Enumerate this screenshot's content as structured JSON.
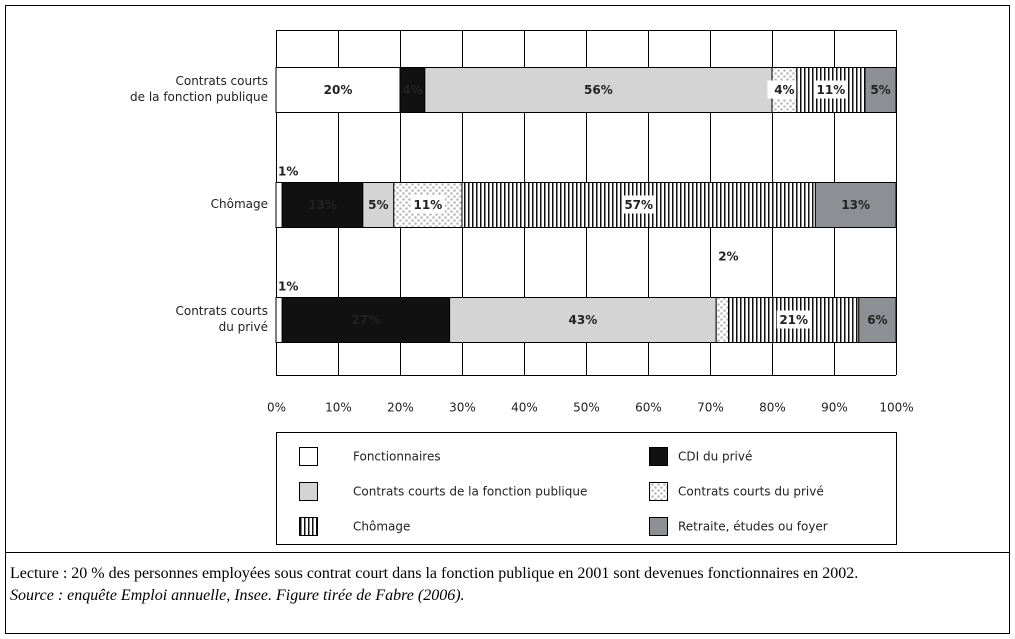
{
  "chart_data": {
    "type": "stacked-bar-horizontal",
    "categories": [
      [
        "Contrats courts",
        "de la fonction publique"
      ],
      [
        "Chômage"
      ],
      [
        "Contrats courts",
        "du privé"
      ]
    ],
    "series": [
      {
        "name": "Fonctionnaires",
        "color": "#ffffff",
        "values": [
          20,
          1,
          1
        ],
        "value_labels": [
          "20%",
          "1%",
          "1%"
        ]
      },
      {
        "name": "CDI du privé",
        "color": "#111111",
        "values": [
          4,
          13,
          27
        ],
        "value_labels": [
          "4%",
          "13%",
          "27%"
        ]
      },
      {
        "name": "Contrats courts de la fonction publique",
        "color": "#d4d4d4",
        "values": [
          56,
          5,
          43
        ],
        "value_labels": [
          "56%",
          "5%",
          "43%"
        ]
      },
      {
        "name": "Contrats courts du privé",
        "color": "#ffffff",
        "pattern": "dots",
        "values": [
          4,
          11,
          2
        ],
        "value_labels": [
          "4%",
          "11%",
          "2%"
        ]
      },
      {
        "name": "Chômage",
        "color": "#ffffff",
        "pattern": "stripes",
        "values": [
          11,
          57,
          21
        ],
        "value_labels": [
          "11%",
          "57%",
          "21%"
        ]
      },
      {
        "name": "Retraite, études ou foyer",
        "color": "#8c9094",
        "values": [
          5,
          13,
          6
        ],
        "value_labels": [
          "5%",
          "13%",
          "6%"
        ]
      }
    ],
    "xlim": [
      0,
      100
    ],
    "xticks": [
      {
        "value": 0,
        "label": "0%"
      },
      {
        "value": 10,
        "label": "10%"
      },
      {
        "value": 20,
        "label": "20%"
      },
      {
        "value": 30,
        "label": "30%"
      },
      {
        "value": 40,
        "label": "40%"
      },
      {
        "value": 50,
        "label": "50%"
      },
      {
        "value": 60,
        "label": "60%"
      },
      {
        "value": 70,
        "label": "70%"
      },
      {
        "value": 80,
        "label": "80%"
      },
      {
        "value": 90,
        "label": "90%"
      },
      {
        "value": 100,
        "label": "100%"
      }
    ],
    "grid": true,
    "legend": "bottom"
  },
  "caption": {
    "reading": "Lecture : 20 % des personnes employées sous contrat court dans la fonction publique en 2001 sont devenues fonctionnaires en 2002.",
    "source": "Source : enquête Emploi annuelle, Insee. Figure tirée de Fabre (2006)."
  }
}
